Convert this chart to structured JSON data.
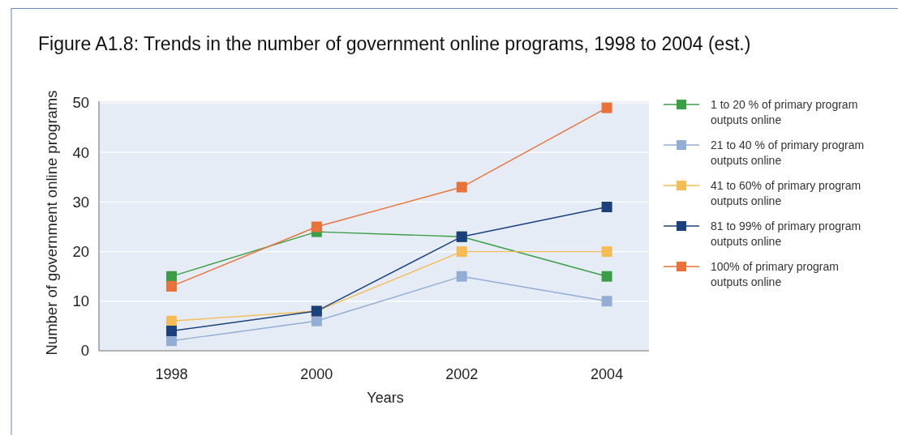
{
  "chart_data": {
    "type": "line",
    "title": "Figure A1.8: Trends in the number of government online programs, 1998 to 2004 (est.)",
    "xlabel": "Years",
    "ylabel": "Number of government online programs",
    "categories": [
      "1998",
      "2000",
      "2002",
      "2004"
    ],
    "series": [
      {
        "name": "1 to 20 % of primary program outputs online",
        "color": "#3a9e47",
        "values": [
          15,
          24,
          23,
          15
        ]
      },
      {
        "name": "21 to 40 % of primary program outputs online",
        "color": "#92aed4",
        "values": [
          2,
          6,
          15,
          10
        ]
      },
      {
        "name": "41 to 60% of primary program outputs online",
        "color": "#f5bb55",
        "values": [
          6,
          8,
          20,
          20
        ]
      },
      {
        "name": "81 to 99% of primary program outputs online",
        "color": "#1b417c",
        "values": [
          4,
          8,
          23,
          29
        ]
      },
      {
        "name": "100% of primary program outputs online",
        "color": "#e8723a",
        "values": [
          13,
          25,
          33,
          49
        ]
      }
    ],
    "ylim": [
      0,
      50
    ],
    "yticks": [
      0,
      10,
      20,
      30,
      40,
      50
    ],
    "grid": "y",
    "legend": "right",
    "marker": "square",
    "line_style": "solid"
  }
}
